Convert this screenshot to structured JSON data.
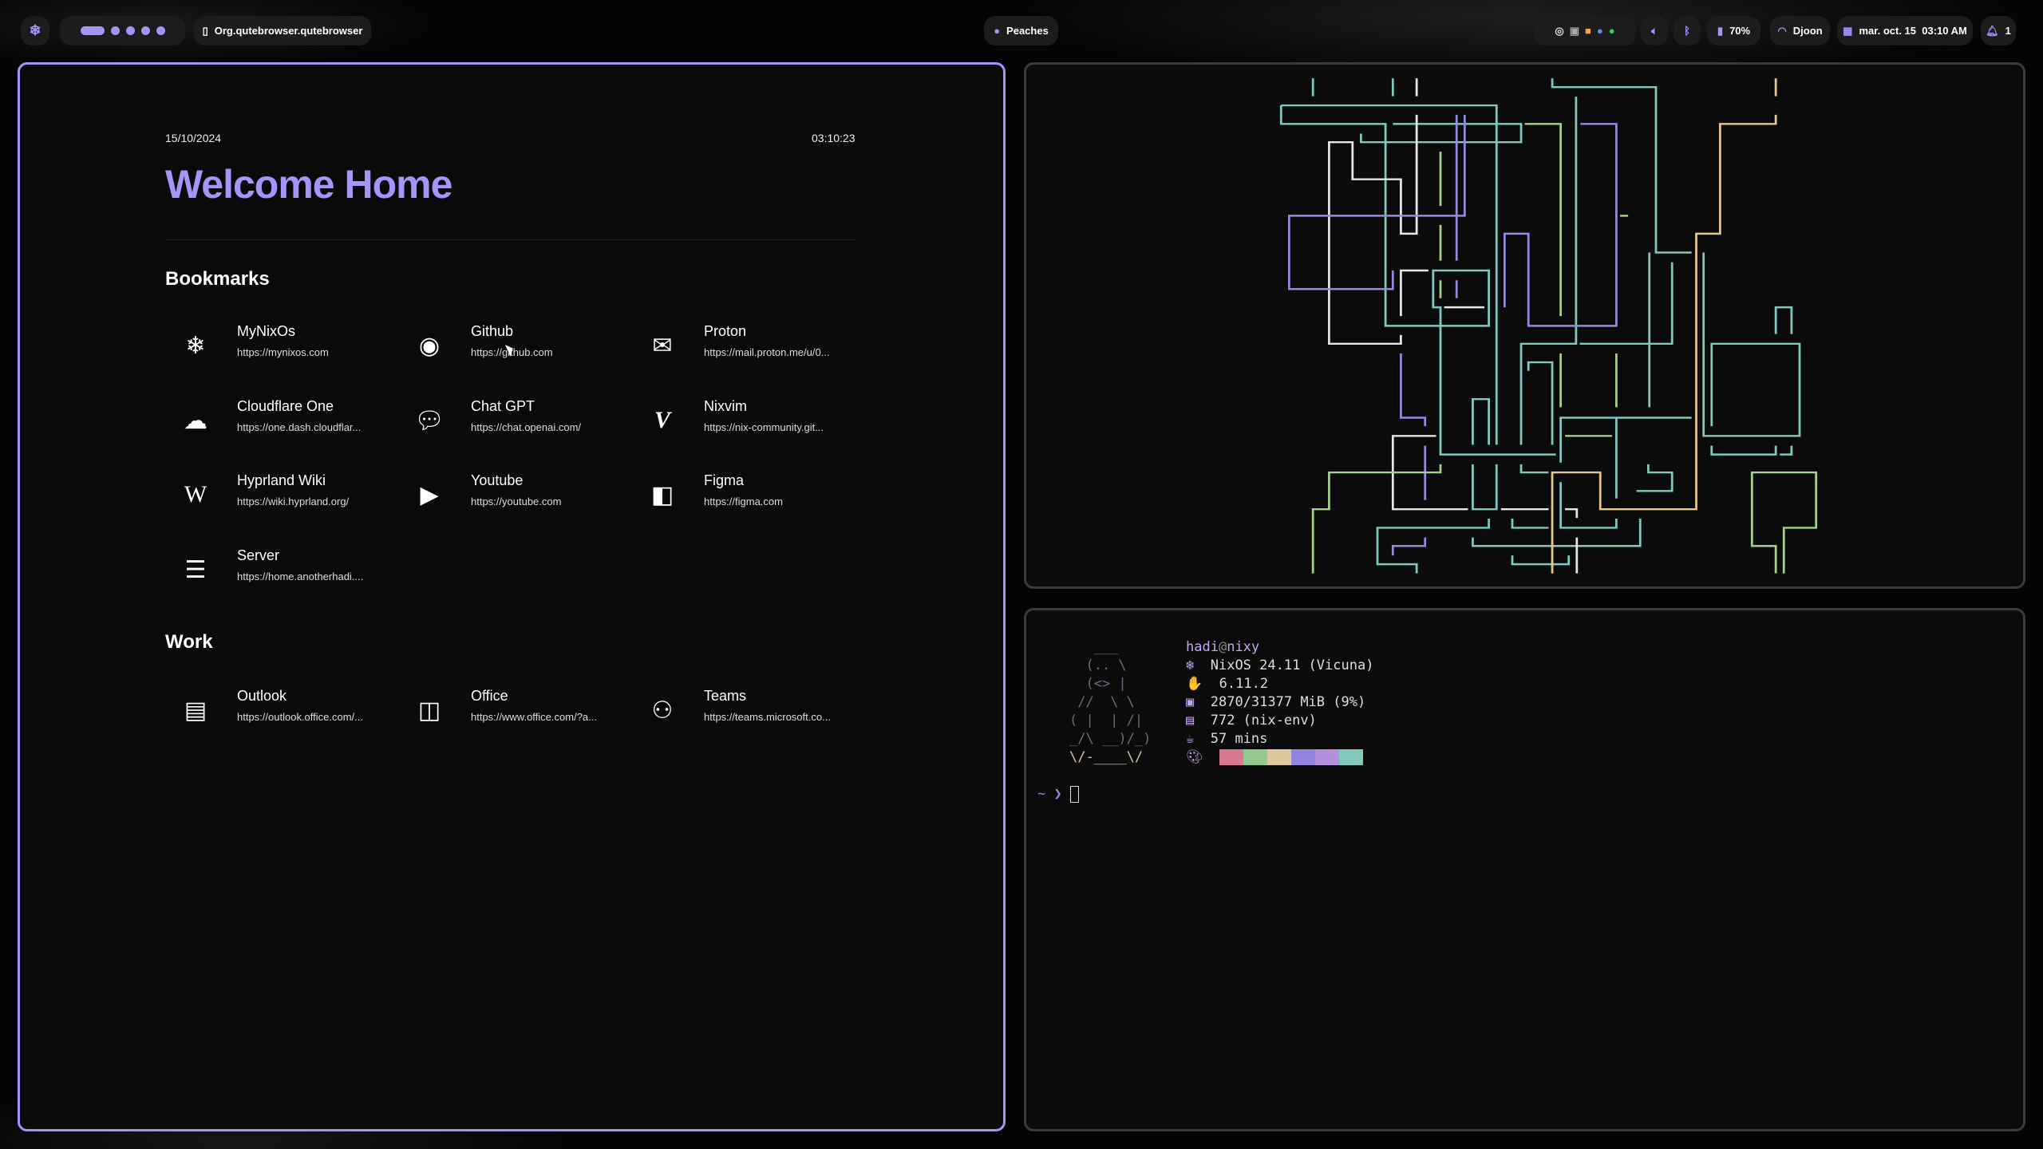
{
  "topbar": {
    "workspaces": [
      true,
      false,
      false,
      false,
      false
    ],
    "window_title": "Org.qutebrowser.qutebrowser",
    "media": "Peaches",
    "battery": "70%",
    "wifi": "Djoon",
    "datetime": "mar. oct. 15  03:10 AM",
    "notifications": "1"
  },
  "home": {
    "date": "15/10/2024",
    "time": "03:10:23",
    "title": "Welcome Home",
    "bookmarks_heading": "Bookmarks",
    "bookmarks": [
      {
        "name": "MyNixOs",
        "url": "https://mynixos.com",
        "icon": "nixos-icon"
      },
      {
        "name": "Github",
        "url": "https://github.com",
        "icon": "github-icon"
      },
      {
        "name": "Proton",
        "url": "https://mail.proton.me/u/0...",
        "icon": "mail-icon"
      },
      {
        "name": "Cloudflare One",
        "url": "https://one.dash.cloudflar...",
        "icon": "cloud-icon"
      },
      {
        "name": "Chat GPT",
        "url": "https://chat.openai.com/",
        "icon": "chat-icon"
      },
      {
        "name": "Nixvim",
        "url": "https://nix-community.git...",
        "icon": "vim-icon"
      },
      {
        "name": "Hyprland Wiki",
        "url": "https://wiki.hyprland.org/",
        "icon": "wikipedia-icon"
      },
      {
        "name": "Youtube",
        "url": "https://youtube.com",
        "icon": "youtube-icon"
      },
      {
        "name": "Figma",
        "url": "https://figma.com",
        "icon": "figma-icon"
      },
      {
        "name": "Server",
        "url": "https://home.anotherhadi....",
        "icon": "server-icon"
      }
    ],
    "work_heading": "Work",
    "work": [
      {
        "name": "Outlook",
        "url": "https://outlook.office.com/...",
        "icon": "outlook-icon"
      },
      {
        "name": "Office",
        "url": "https://www.office.com/?a...",
        "icon": "office-icon"
      },
      {
        "name": "Teams",
        "url": "https://teams.microsoft.co...",
        "icon": "teams-icon"
      }
    ]
  },
  "terminal": {
    "user": "hadi",
    "at": "@",
    "host": "nixy",
    "os": "NixOS 24.11 (Vicuna)",
    "kernel": "6.11.2",
    "memory": "2870/31377 MiB (9%)",
    "packages": "772 (nix-env)",
    "uptime": "57 mins",
    "palette": [
      "#d8788f",
      "#94c98f",
      "#dcc89a",
      "#9484e0",
      "#b491db",
      "#83c8bb"
    ],
    "prompt": "~ ❯",
    "ascii": [
      "   ___",
      "  (.. \\",
      "  (<> |",
      " //  \\ \\",
      "( |  | /|",
      "_/\\ __)/_)",
      "\\/-____\\/"
    ]
  },
  "colors": {
    "accent": "#a594f9",
    "teal": "#81c8be",
    "purple": "#968ae0",
    "white": "#e6e6e6",
    "green": "#a6d189",
    "tan": "#e5c890"
  }
}
